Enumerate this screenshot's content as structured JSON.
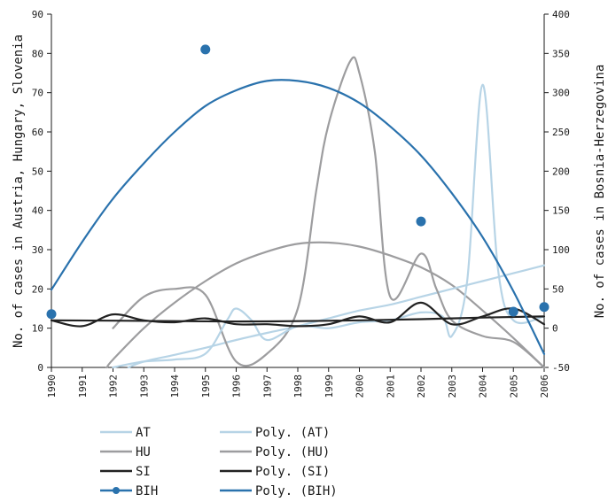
{
  "chart_data": {
    "type": "line",
    "xlabel": "",
    "x": [
      "1990",
      "1991",
      "1992",
      "1993",
      "1994",
      "1995",
      "1996",
      "1997",
      "1998",
      "1999",
      "2000",
      "2001",
      "2002",
      "2003",
      "2004",
      "2005",
      "2006"
    ],
    "y_left": {
      "label": "No. of cases in Austria, Hungary, Slovenia",
      "range": [
        0,
        90
      ],
      "ticks": [
        0,
        10,
        20,
        30,
        40,
        50,
        60,
        70,
        80,
        90
      ]
    },
    "y_right": {
      "label": "No. of cases in Bosnia-Herzegovina",
      "range": [
        -50,
        400
      ],
      "ticks": [
        -50,
        0,
        50,
        100,
        150,
        200,
        250,
        300,
        350,
        400
      ]
    },
    "series": [
      {
        "name": "AT",
        "axis": "left",
        "color": "#b7d4e6",
        "kind": "data",
        "x": [
          1992,
          1993,
          1994,
          1995,
          1995.7,
          1996,
          1996.5,
          1997,
          1998,
          1999,
          2000,
          2001,
          2002,
          2002.7,
          2003,
          2003.5,
          2004,
          2004.5,
          2005,
          2006
        ],
        "y": [
          0,
          1.5,
          2,
          3.5,
          12,
          15,
          12,
          7,
          10.5,
          10,
          11.5,
          12,
          14,
          13,
          8,
          22,
          72,
          25,
          12,
          13
        ]
      },
      {
        "name": "HU",
        "axis": "left",
        "color": "#9d9d9f",
        "kind": "data",
        "x": [
          1992,
          1993,
          1994,
          1995,
          1996,
          1997,
          1998,
          1998.6,
          1999,
          1999.7,
          2000,
          2000.5,
          2001,
          2002,
          2002.5,
          2003,
          2004,
          2005,
          2006
        ],
        "y": [
          10,
          18,
          20,
          18.5,
          1.5,
          3.5,
          15,
          45,
          62,
          78,
          75,
          55,
          18,
          29,
          20,
          12,
          8,
          6.5,
          0
        ]
      },
      {
        "name": "SI",
        "axis": "left",
        "color": "#222222",
        "kind": "data",
        "x": [
          1990,
          1991,
          1992,
          1993,
          1994,
          1995,
          1996,
          1997,
          1998,
          1999,
          2000,
          2001,
          2002,
          2003,
          2004,
          2005,
          2006
        ],
        "y": [
          12,
          10.5,
          13.5,
          12,
          11.5,
          12.5,
          11,
          11,
          10.5,
          11,
          13,
          11.5,
          16.5,
          11,
          13,
          15,
          11
        ]
      },
      {
        "name": "BIH",
        "axis": "right",
        "color": "#2a72ad",
        "kind": "markers",
        "x": [
          1990,
          1995,
          2002,
          2005,
          2006
        ],
        "y": [
          18,
          355,
          136,
          21,
          27
        ]
      },
      {
        "name": "Poly. (AT)",
        "axis": "left",
        "color": "#b7d4e6",
        "kind": "trend",
        "x": [
          1992.5,
          1993,
          1994,
          1995,
          1996,
          1997,
          1998,
          1999,
          2000,
          2001,
          2002,
          2003,
          2004,
          2005,
          2006
        ],
        "y": [
          0,
          1.5,
          3.2,
          5,
          7,
          8.8,
          10.5,
          12.5,
          14.5,
          16,
          18,
          20,
          22,
          24,
          26
        ]
      },
      {
        "name": "Poly. (HU)",
        "axis": "left",
        "color": "#9d9d9f",
        "kind": "trend",
        "x": [
          1991.8,
          1992,
          1993,
          1994,
          1995,
          1996,
          1997,
          1998,
          1999,
          2000,
          2001,
          2002,
          2003,
          2004,
          2005,
          2006
        ],
        "y": [
          0,
          2,
          10,
          16.5,
          22,
          26.5,
          29.5,
          31.5,
          31.8,
          30.8,
          28.5,
          25.5,
          21,
          14.5,
          7.5,
          0
        ]
      },
      {
        "name": "Poly. (SI)",
        "axis": "left",
        "color": "#222222",
        "kind": "trend",
        "x": [
          1990,
          1992,
          1994,
          1996,
          1998,
          2000,
          2002,
          2004,
          2006
        ],
        "y": [
          12,
          11.9,
          11.8,
          11.7,
          11.8,
          12,
          12.3,
          12.7,
          13
        ]
      },
      {
        "name": "Poly. (BIH)",
        "axis": "right",
        "color": "#2a72ad",
        "kind": "trend",
        "x": [
          1990,
          1991,
          1992,
          1993,
          1994,
          1995,
          1996,
          1997,
          1998,
          1999,
          2000,
          2001,
          2002,
          2003,
          2004,
          2005,
          2006
        ],
        "y": [
          49,
          110,
          165,
          210,
          250,
          283,
          303,
          315,
          315,
          306,
          287,
          257,
          220,
          172,
          116,
          47,
          -33
        ]
      }
    ],
    "legend": {
      "placement": "bottom",
      "left_column": [
        "AT",
        "HU",
        "SI",
        "BIH"
      ],
      "right_column": [
        "Poly. (AT)",
        "Poly. (HU)",
        "Poly. (SI)",
        "Poly. (BIH)"
      ]
    },
    "grid": false
  }
}
